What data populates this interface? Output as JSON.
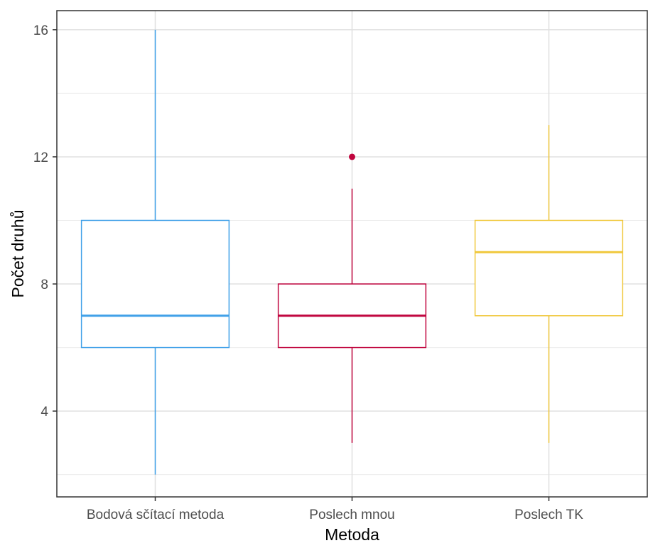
{
  "chart_data": {
    "type": "box",
    "xlabel": "Metoda",
    "ylabel": "Počet druhů",
    "ylim": [
      1.3,
      16.6
    ],
    "yticks": [
      4,
      8,
      12,
      16
    ],
    "grid": true,
    "categories": [
      "Bodová sčítací metoda",
      "Poslech mnou",
      "Poslech TK"
    ],
    "boxes": [
      {
        "category": "Bodová sčítací metoda",
        "min": 2,
        "q1": 6,
        "median": 7,
        "q3": 10,
        "max": 16,
        "outliers": [],
        "color": "#3fa0e8"
      },
      {
        "category": "Poslech mnou",
        "min": 3,
        "q1": 6,
        "median": 7,
        "q3": 8,
        "max": 11,
        "outliers": [
          12
        ],
        "color": "#c0053e"
      },
      {
        "category": "Poslech TK",
        "min": 3,
        "q1": 7,
        "median": 9,
        "q3": 10,
        "max": 13,
        "outliers": [],
        "color": "#f0c83c"
      }
    ]
  }
}
